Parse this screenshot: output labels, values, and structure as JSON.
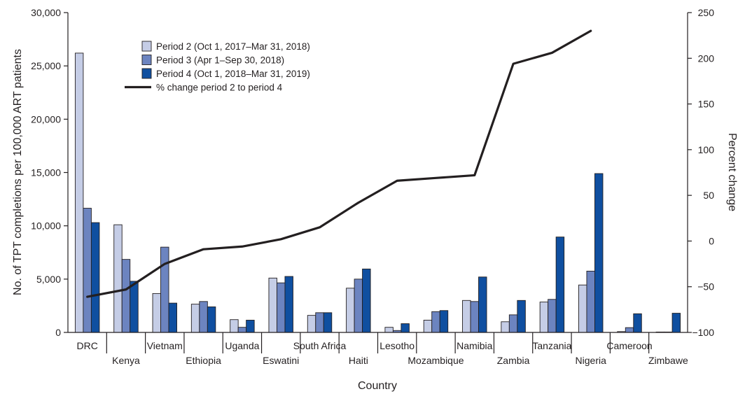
{
  "chart_data": {
    "type": "bar",
    "xlabel": "Country",
    "ylabel": "No. of TPT completions per 100,000 ART patients",
    "y2label": "Percent change",
    "ylim": [
      0,
      30000
    ],
    "y2lim": [
      -100,
      250
    ],
    "yticks": [
      0,
      5000,
      10000,
      15000,
      20000,
      25000,
      30000
    ],
    "yticks_labels": [
      "0",
      "5,000",
      "10,000",
      "15,000",
      "20,000",
      "25,000",
      "30,000"
    ],
    "y2ticks": [
      -100,
      -50,
      0,
      50,
      100,
      150,
      200,
      250
    ],
    "y2ticks_labels": [
      "−100",
      "−50",
      "0",
      "50",
      "100",
      "150",
      "200",
      "250"
    ],
    "grid": false,
    "legend_position": "top-left",
    "categories": [
      "DRC",
      "Kenya",
      "Vietnam",
      "Ethiopia",
      "Uganda",
      "Eswatini",
      "South Africa",
      "Haiti",
      "Lesotho",
      "Mozambique",
      "Namibia",
      "Zambia",
      "Tanzania",
      "Nigeria",
      "Cameroon",
      "Zimbawe"
    ],
    "series": [
      {
        "name": "Period 2 (Oct 1, 2017–Mar 31, 2018)",
        "kind": "bar",
        "color": "#c5cde6",
        "axis": "left",
        "values": [
          26200,
          10100,
          3650,
          2650,
          1200,
          5100,
          1600,
          4150,
          480,
          1150,
          3000,
          1000,
          2850,
          4450,
          80,
          40
        ]
      },
      {
        "name": "Period 3 (Apr 1–Sep 30, 2018)",
        "kind": "bar",
        "color": "#6c84c0",
        "axis": "left",
        "values": [
          11650,
          6850,
          8000,
          2900,
          480,
          4650,
          1850,
          5000,
          180,
          1950,
          2900,
          1650,
          3100,
          5750,
          450,
          40
        ]
      },
      {
        "name": "Period 4 (Oct 1, 2018–Mar 31, 2019)",
        "kind": "bar",
        "color": "#0f4fa0",
        "axis": "left",
        "values": [
          10300,
          4800,
          2750,
          2400,
          1150,
          5250,
          1850,
          5950,
          820,
          2050,
          5200,
          3000,
          8950,
          14900,
          1750,
          1800
        ]
      },
      {
        "name": "% change period 2 to period 4",
        "kind": "line",
        "color": "#231f20",
        "axis": "right",
        "values": [
          -61,
          -53,
          -25,
          -9,
          -6,
          2,
          15,
          42,
          66,
          69,
          72,
          194,
          206,
          230,
          null,
          null
        ]
      }
    ]
  }
}
